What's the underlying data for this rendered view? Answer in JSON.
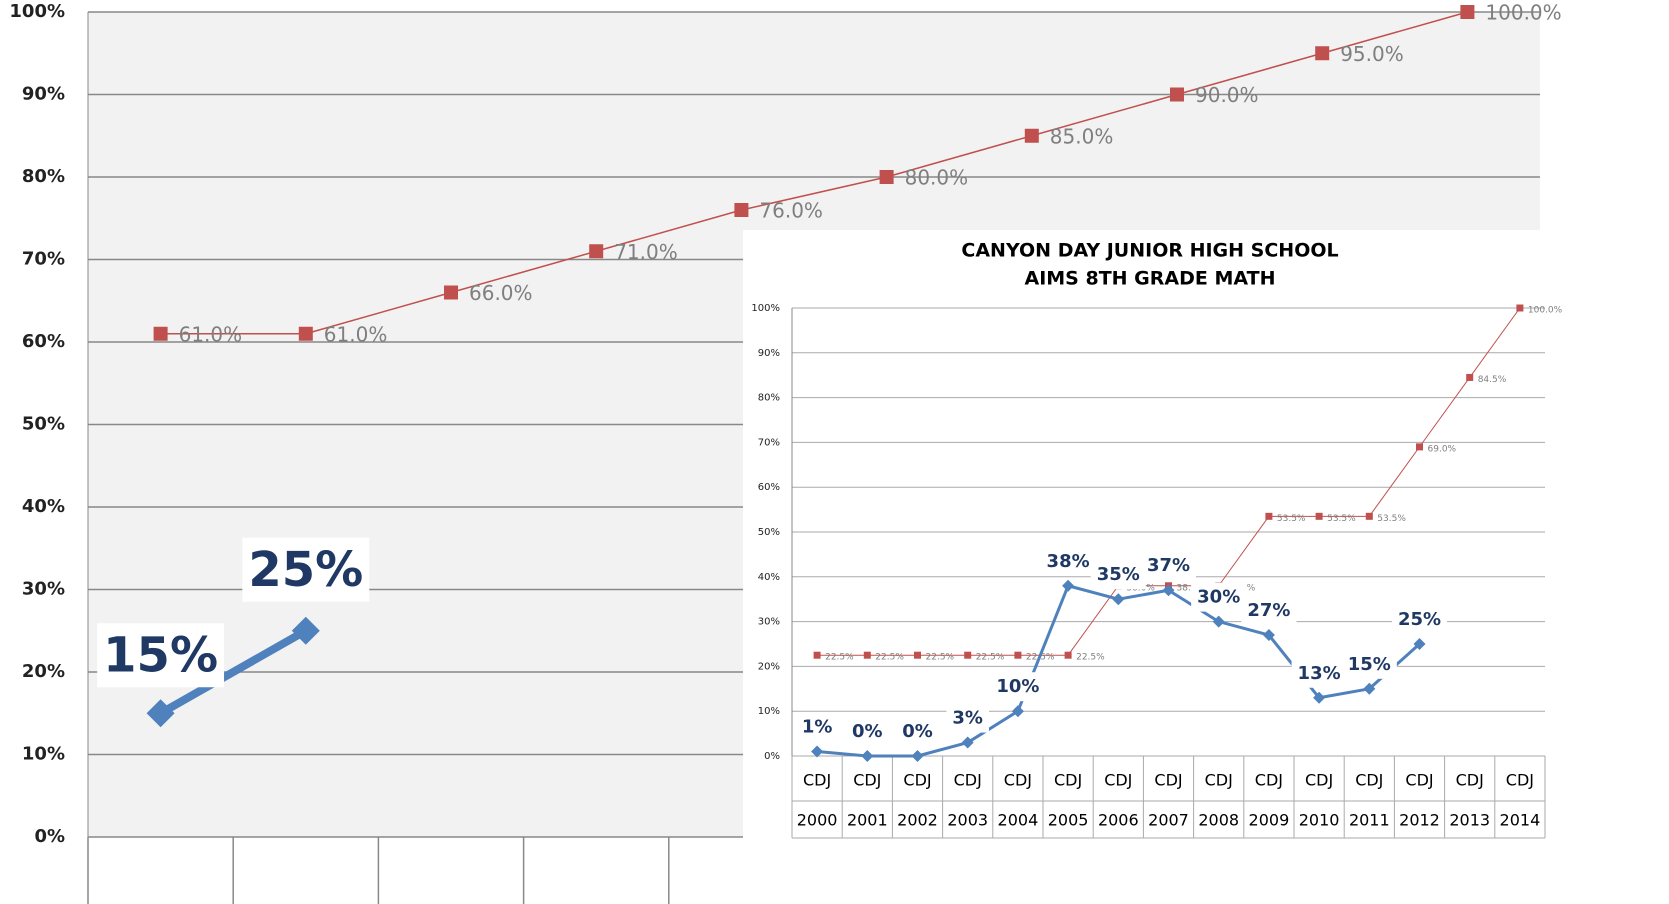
{
  "chart_data": [
    {
      "type": "line",
      "categories": [
        null,
        null,
        null,
        null,
        null,
        null,
        null,
        null,
        null,
        null
      ],
      "ylim": [
        0,
        100
      ],
      "yticks": [
        {
          "value": 0,
          "label": "0%"
        },
        {
          "value": 10,
          "label": "10%"
        },
        {
          "value": 20,
          "label": "20%"
        },
        {
          "value": 30,
          "label": "30%"
        },
        {
          "value": 40,
          "label": "40%"
        },
        {
          "value": 50,
          "label": "50%"
        },
        {
          "value": 60,
          "label": "60%"
        },
        {
          "value": 70,
          "label": "70%"
        },
        {
          "value": 80,
          "label": "80%"
        },
        {
          "value": 90,
          "label": "90%"
        },
        {
          "value": 100,
          "label": "100%"
        }
      ],
      "grid": true,
      "series": [
        {
          "color": "#c0504d",
          "values": [
            61,
            61,
            66,
            71,
            76,
            80,
            85,
            90,
            95,
            100
          ],
          "value_labels": [
            "61.0%",
            "61.0%",
            "66.0%",
            "71.0%",
            "76.0%",
            "80.0%",
            "85.0%",
            "90.0%",
            "95.0%",
            "100.0%"
          ]
        },
        {
          "color": "#4f81bd",
          "values": [
            15,
            25,
            null,
            null,
            null,
            null,
            null,
            null,
            null,
            null
          ],
          "value_labels": [
            "15%",
            "25%",
            null,
            null,
            null,
            null,
            null,
            null,
            null,
            null
          ]
        }
      ]
    },
    {
      "type": "line",
      "title": "CANYON DAY JUNIOR HIGH SCHOOL",
      "subtitle": "AIMS 8TH GRADE MATH",
      "categories": [
        "2000",
        "2001",
        "2002",
        "2003",
        "2004",
        "2005",
        "2006",
        "2007",
        "2008",
        "2009",
        "2010",
        "2011",
        "2012",
        "2013",
        "2014"
      ],
      "category_groups": [
        "CDJ",
        "CDJ",
        "CDJ",
        "CDJ",
        "CDJ",
        "CDJ",
        "CDJ",
        "CDJ",
        "CDJ",
        "CDJ",
        "CDJ",
        "CDJ",
        "CDJ",
        "CDJ",
        "CDJ"
      ],
      "ylim": [
        0,
        100
      ],
      "yticks": [
        {
          "value": 0,
          "label": "0%"
        },
        {
          "value": 10,
          "label": "10%"
        },
        {
          "value": 20,
          "label": "20%"
        },
        {
          "value": 30,
          "label": "30%"
        },
        {
          "value": 40,
          "label": "40%"
        },
        {
          "value": 50,
          "label": "50%"
        },
        {
          "value": 60,
          "label": "60%"
        },
        {
          "value": 70,
          "label": "70%"
        },
        {
          "value": 80,
          "label": "80%"
        },
        {
          "value": 90,
          "label": "90%"
        },
        {
          "value": 100,
          "label": "100%"
        }
      ],
      "grid": true,
      "series": [
        {
          "color": "#c0504d",
          "values": [
            22.5,
            22.5,
            22.5,
            22.5,
            22.5,
            22.5,
            38.0,
            38.0,
            38.0,
            53.5,
            53.5,
            53.5,
            69.0,
            84.5,
            100.0
          ],
          "value_labels": [
            "22.5%",
            "22.5%",
            "22.5%",
            "22.5%",
            "22.5%",
            "22.5%",
            "38.0%",
            "38.0%",
            "38.0%",
            "53.5%",
            "53.5%",
            "53.5%",
            "69.0%",
            "84.5%",
            "100.0%"
          ]
        },
        {
          "color": "#4f81bd",
          "values": [
            1,
            0,
            0,
            3,
            10,
            38,
            35,
            37,
            30,
            27,
            13,
            15,
            25,
            null,
            null
          ],
          "value_labels": [
            "1%",
            "0%",
            "0%",
            "3%",
            "10%",
            "38%",
            "35%",
            "37%",
            "30%",
            "27%",
            "13%",
            "15%",
            "25%",
            null,
            null
          ]
        }
      ]
    }
  ]
}
